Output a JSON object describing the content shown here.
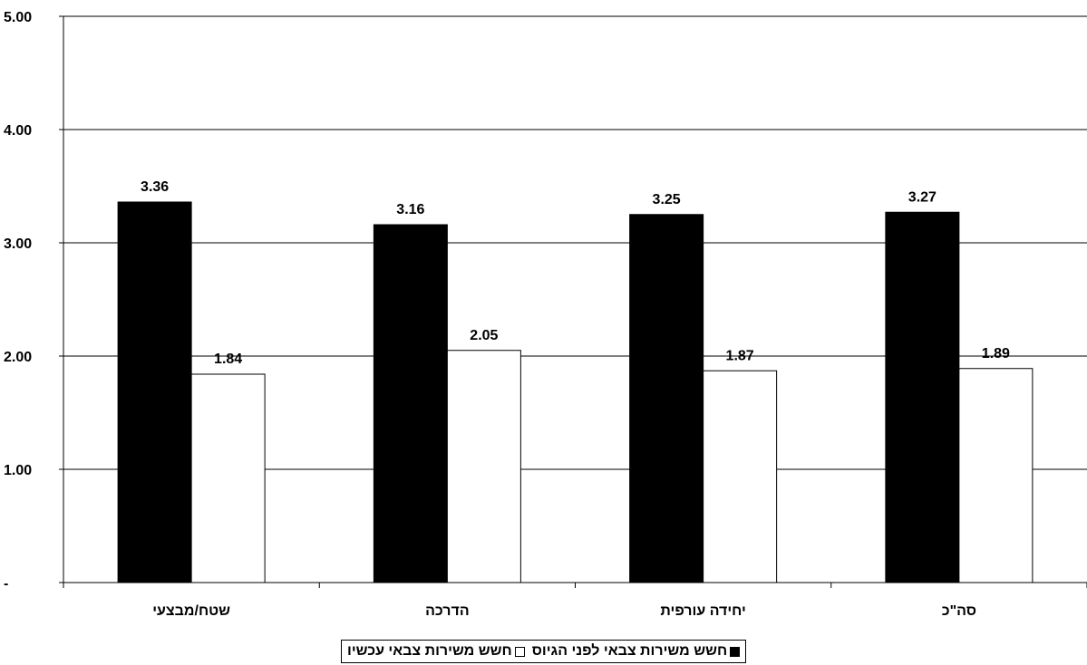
{
  "chart_data": {
    "type": "bar",
    "categories": [
      "שטח/מבצעי",
      "הדרכה",
      "יחידה עורפית",
      "סה\"כ"
    ],
    "series": [
      {
        "name": "חשש משירות צבאי לפני הגיוס",
        "values": [
          3.36,
          3.16,
          3.25,
          3.27
        ],
        "color": "#000000"
      },
      {
        "name": "חשש משירות צבאי עכשיו",
        "values": [
          1.84,
          2.05,
          1.87,
          1.89
        ],
        "color": "#ffffff"
      }
    ],
    "yticks": [
      "-",
      "1.00",
      "2.00",
      "3.00",
      "4.00",
      "5.00"
    ],
    "ylim": [
      0,
      5
    ],
    "grid": true,
    "legend_position": "bottom"
  }
}
